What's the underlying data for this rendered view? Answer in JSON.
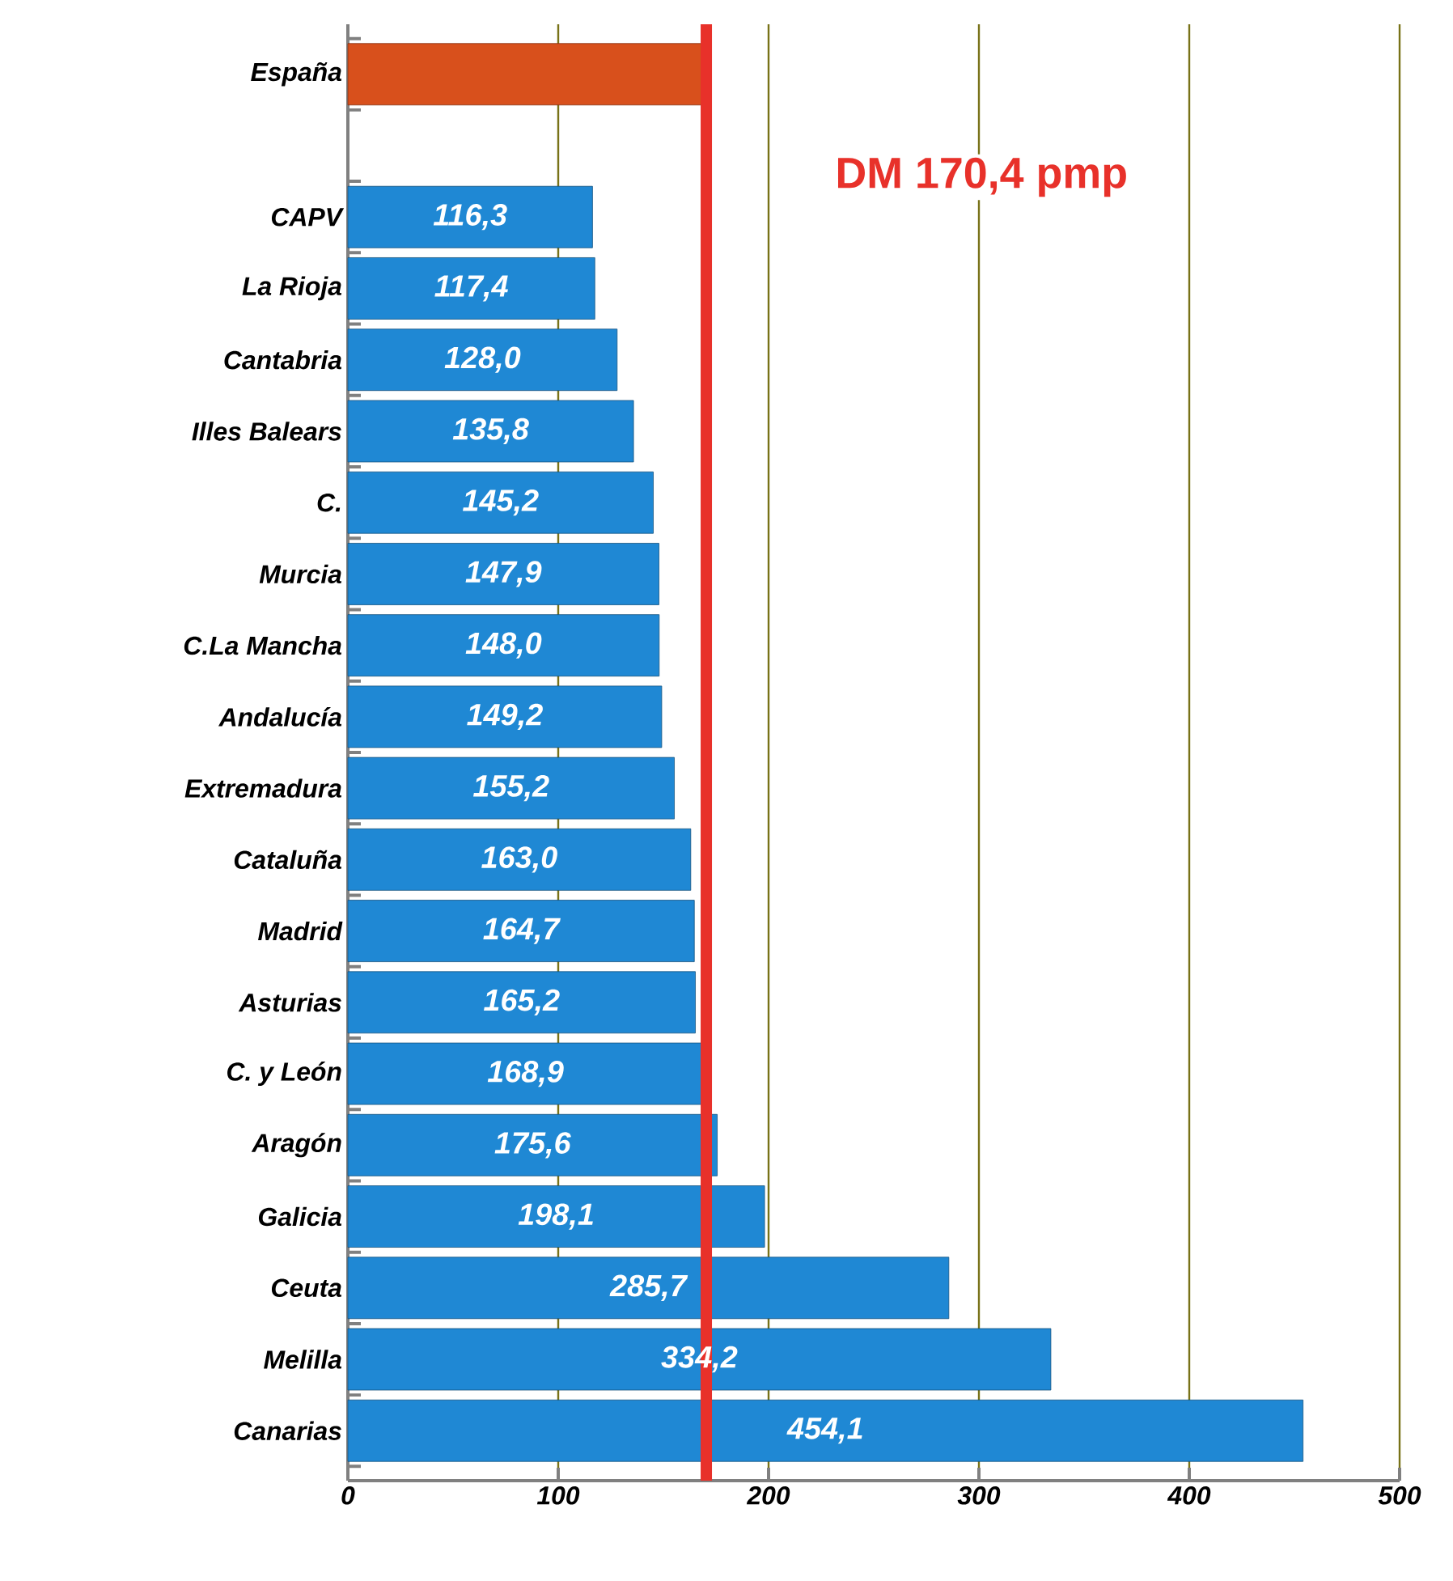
{
  "chart_data": {
    "type": "bar",
    "orientation": "horizontal",
    "categories": [
      "España",
      null,
      "CAPV",
      "La Rioja",
      "Cantabria",
      "Illes Balears",
      "C.",
      "Murcia",
      "C.La Mancha",
      "Andalucía",
      "Extremadura",
      "Cataluña",
      "Madrid",
      "Asturias",
      "C. y León",
      "Aragón",
      "Galicia",
      "Ceuta",
      "Melilla",
      "Canarias"
    ],
    "values": [
      170.4,
      null,
      116.3,
      117.4,
      128.0,
      135.8,
      145.2,
      147.9,
      148.0,
      149.2,
      155.2,
      163.0,
      164.7,
      165.2,
      168.9,
      175.6,
      198.1,
      285.7,
      334.2,
      454.1
    ],
    "value_labels": [
      null,
      null,
      "116,3",
      "117,4",
      "128,0",
      "135,8",
      "145,2",
      "147,9",
      "148,0",
      "149,2",
      "155,2",
      "163,0",
      "164,7",
      "165,2",
      "168,9",
      "175,6",
      "198,1",
      "285,7",
      "334,2",
      "454,1"
    ],
    "colors": [
      "#d8501c",
      null,
      "#1f88d4",
      "#1f88d4",
      "#1f88d4",
      "#1f88d4",
      "#1f88d4",
      "#1f88d4",
      "#1f88d4",
      "#1f88d4",
      "#1f88d4",
      "#1f88d4",
      "#1f88d4",
      "#1f88d4",
      "#1f88d4",
      "#1f88d4",
      "#1f88d4",
      "#1f88d4",
      "#1f88d4",
      "#1f88d4"
    ],
    "xlim": [
      0,
      500
    ],
    "xticks": [
      0,
      100,
      200,
      300,
      400,
      500
    ],
    "grid": "x",
    "ref_lines": [
      {
        "axis": "x",
        "value": 170.4,
        "label": "DM 170,4 pmp",
        "color": "#e8312a"
      }
    ]
  }
}
